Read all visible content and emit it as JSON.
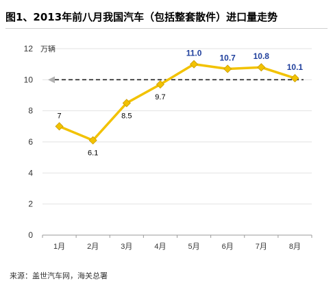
{
  "title": "图1、2013年前八月我国汽车（包括整套散件）进口量走势",
  "source": "来源：盖世汽车网，海关总署",
  "chart_data": {
    "type": "line",
    "categories": [
      "1月",
      "2月",
      "3月",
      "4月",
      "5月",
      "6月",
      "7月",
      "8月"
    ],
    "series": [
      {
        "values": [
          7,
          6.1,
          8.5,
          9.7,
          11.0,
          10.7,
          10.8,
          10.1
        ]
      }
    ],
    "data_labels": [
      "7",
      "6.1",
      "8.5",
      "9.7",
      "11.0",
      "10.7",
      "10.8",
      "10.1"
    ],
    "unit": "万辆",
    "ylim": [
      0,
      12
    ],
    "yticks": [
      "0",
      "2",
      "4",
      "6",
      "8",
      "10",
      "12"
    ],
    "reference_line": {
      "value": 10,
      "style": "dashed"
    },
    "grid": true,
    "colors": {
      "line": "#f2c200",
      "marker": "#f2c200",
      "highlight_label": "#1f3f9c",
      "label": "#000000",
      "grid": "#e2e2e2"
    }
  }
}
